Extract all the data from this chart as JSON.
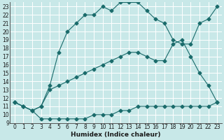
{
  "xlabel": "Humidex (Indice chaleur)",
  "bg_color": "#c8e8e8",
  "grid_color": "#b0d8d8",
  "line_color": "#1a6b6b",
  "line1_x": [
    0,
    1,
    2,
    3,
    4,
    5,
    6,
    7,
    8,
    9,
    10,
    11,
    12,
    13,
    14,
    15,
    16,
    17,
    18,
    19,
    20,
    21,
    22,
    23
  ],
  "line1_y": [
    11.5,
    11.0,
    10.5,
    9.5,
    9.5,
    9.5,
    9.5,
    9.5,
    9.5,
    10.0,
    10.0,
    10.0,
    10.5,
    10.5,
    11.0,
    11.0,
    11.0,
    11.0,
    11.0,
    11.0,
    11.0,
    11.0,
    11.0,
    11.5
  ],
  "line2_x": [
    0,
    1,
    2,
    3,
    4,
    5,
    6,
    7,
    8,
    9,
    10,
    11,
    12,
    13,
    14,
    15,
    16,
    17,
    18,
    19,
    20,
    21,
    22,
    23
  ],
  "line2_y": [
    11.5,
    11.0,
    10.5,
    11.0,
    13.0,
    13.5,
    14.0,
    14.5,
    15.0,
    15.5,
    16.0,
    16.5,
    17.0,
    17.5,
    17.5,
    17.0,
    16.5,
    16.5,
    18.5,
    19.0,
    17.0,
    15.0,
    13.5,
    11.5
  ],
  "line3_x": [
    0,
    1,
    2,
    3,
    4,
    5,
    6,
    7,
    8,
    9,
    10,
    11,
    12,
    13,
    14,
    15,
    16,
    17,
    18,
    19,
    20,
    21,
    22,
    23
  ],
  "line3_y": [
    11.5,
    11.0,
    10.5,
    11.0,
    13.5,
    17.5,
    20.0,
    21.0,
    22.0,
    22.0,
    23.0,
    22.5,
    23.5,
    23.5,
    23.5,
    22.5,
    21.5,
    21.0,
    19.0,
    18.5,
    18.5,
    21.0,
    21.5,
    23.0
  ],
  "ylim": [
    9,
    23.5
  ],
  "xlim": [
    -0.5,
    23.5
  ],
  "yticks": [
    9,
    10,
    11,
    12,
    13,
    14,
    15,
    16,
    17,
    18,
    19,
    20,
    21,
    22,
    23
  ],
  "xticks": [
    0,
    1,
    2,
    3,
    4,
    5,
    6,
    7,
    8,
    9,
    10,
    11,
    12,
    13,
    14,
    15,
    16,
    17,
    18,
    19,
    20,
    21,
    22,
    23
  ],
  "tick_fontsize": 5.5,
  "xlabel_fontsize": 6.5
}
